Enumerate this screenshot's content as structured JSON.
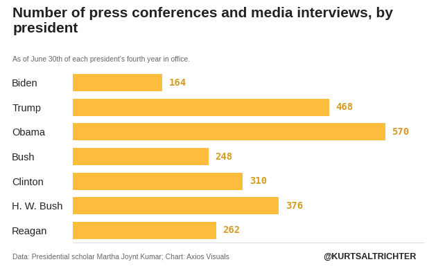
{
  "chart_data": {
    "type": "bar",
    "orientation": "horizontal",
    "title": "Number of press conferences and media interviews, by president",
    "subtitle": "As of June 30th of each president's fourth year in office.",
    "categories": [
      "Biden",
      "Trump",
      "Obama",
      "Bush",
      "Clinton",
      "H. W. Bush",
      "Reagan"
    ],
    "values": [
      164,
      468,
      570,
      248,
      310,
      376,
      262
    ],
    "color": "#fcbd3c",
    "xlim": [
      0,
      640
    ],
    "xticks": [],
    "data_labels": true,
    "tick_labels": "y",
    "grid": false,
    "source": "Data: Presidential scholar Martha Joynt Kumar; Chart: Axios Visuals",
    "credit": "@KURTSALTRICHTER"
  }
}
